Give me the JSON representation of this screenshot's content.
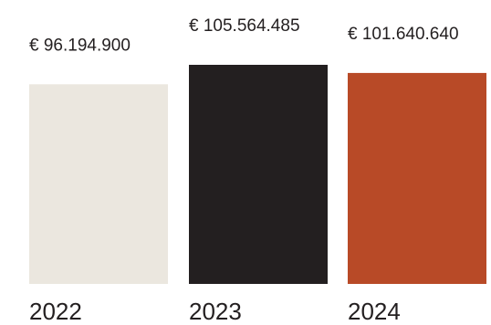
{
  "chart_data": {
    "type": "bar",
    "categories": [
      "2022",
      "2023",
      "2024"
    ],
    "values": [
      96194900,
      105564485,
      101640640
    ],
    "value_labels": [
      "€ 96.194.900",
      "€ 105.564.485",
      "€ 101.640.640"
    ],
    "bar_colors": [
      "#ebe7df",
      "#231f20",
      "#b84a27"
    ],
    "title": "",
    "xlabel": "",
    "ylabel": "",
    "grid": false,
    "legend": "none"
  }
}
